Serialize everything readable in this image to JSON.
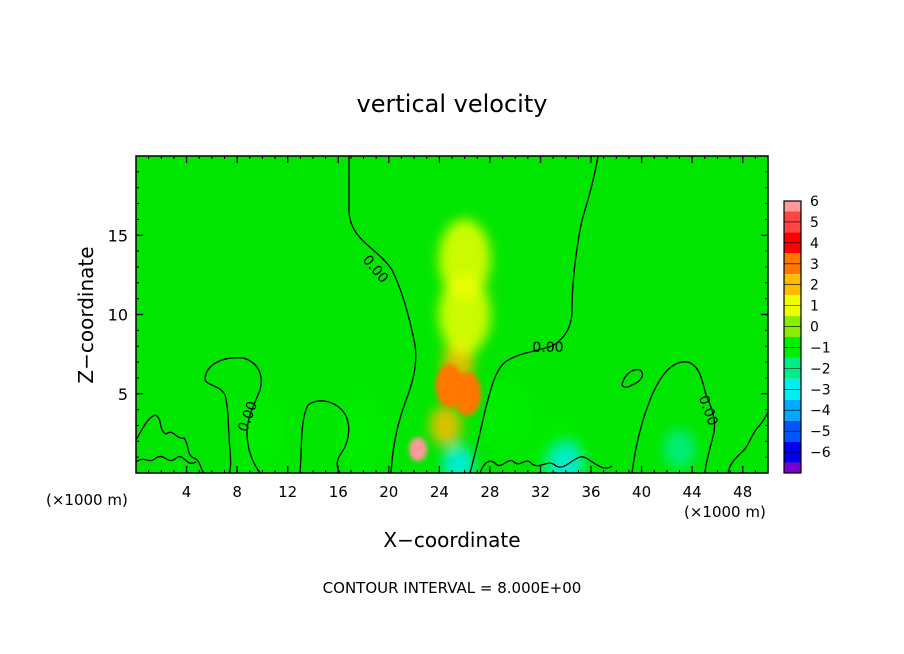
{
  "chart_data": {
    "type": "heatmap",
    "title": "vertical velocity",
    "xlabel": "X−coordinate",
    "ylabel": "Z−coordinate",
    "x_units_label": "(×1000 m)",
    "x_units_label_right": "(×1000 m)",
    "xlim": [
      0,
      50
    ],
    "ylim": [
      0,
      20
    ],
    "x_ticks": [
      4,
      8,
      12,
      16,
      20,
      24,
      28,
      32,
      36,
      40,
      44,
      48
    ],
    "x_tick_labels": [
      "4",
      "8",
      "12",
      "16",
      "20",
      "24",
      "28",
      "32",
      "36",
      "40",
      "44",
      "48"
    ],
    "y_ticks": [
      5,
      10,
      15
    ],
    "y_tick_labels": [
      "5",
      "10",
      "15"
    ],
    "colorbar": {
      "levels": [
        6,
        5,
        4,
        3,
        2,
        1,
        0,
        -1,
        -2,
        -3,
        -4,
        -5,
        -6
      ],
      "labels": [
        "6",
        "5",
        "4",
        "3",
        "2",
        "1",
        "0",
        "−1",
        "−2",
        "−3",
        "−4",
        "−5",
        "−6"
      ],
      "colors": [
        "#ff9999",
        "#ff4444",
        "#ff0000",
        "#ff7700",
        "#ffbb00",
        "#eeff00",
        "#88ee00",
        "#00ee00",
        "#00ee88",
        "#00eeee",
        "#00aaff",
        "#0055ff",
        "#0000ee",
        "#7700cc"
      ]
    },
    "background_value": 0,
    "features": [
      {
        "kind": "updraft",
        "x": 22.3,
        "z": 1.5,
        "value": 6
      },
      {
        "kind": "updraft",
        "x": 24.8,
        "z": 5.5,
        "value": 3
      },
      {
        "kind": "updraft",
        "x": 26.2,
        "z": 5.0,
        "value": 3
      },
      {
        "kind": "updraft",
        "x": 25.5,
        "z": 7.0,
        "value": 2
      },
      {
        "kind": "updraft",
        "x": 24.5,
        "z": 3.0,
        "value": 2
      },
      {
        "kind": "updraft",
        "x": 26.0,
        "z": 10.0,
        "value": 1
      },
      {
        "kind": "updraft",
        "x": 26.0,
        "z": 13.5,
        "value": 1
      },
      {
        "kind": "downdraft",
        "x": 29.5,
        "z": 3.5,
        "value": -1
      },
      {
        "kind": "downdraft",
        "x": 18.0,
        "z": 2.5,
        "value": -1
      },
      {
        "kind": "downdraft",
        "x": 10.0,
        "z": 2.5,
        "value": -1
      },
      {
        "kind": "downdraft",
        "x": 33.5,
        "z": 1.0,
        "value": -1
      },
      {
        "kind": "downdraft",
        "x": 43.0,
        "z": 1.5,
        "value": -2
      },
      {
        "kind": "downdraft",
        "x": 25.5,
        "z": 0.5,
        "value": -3
      },
      {
        "kind": "downdraft",
        "x": 34.0,
        "z": 0.5,
        "value": -3
      }
    ],
    "contour_labels": [
      "0.00",
      "0.00",
      "0.00",
      "0.00"
    ],
    "contour_interval_text": "CONTOUR INTERVAL = 8.000E+00"
  }
}
